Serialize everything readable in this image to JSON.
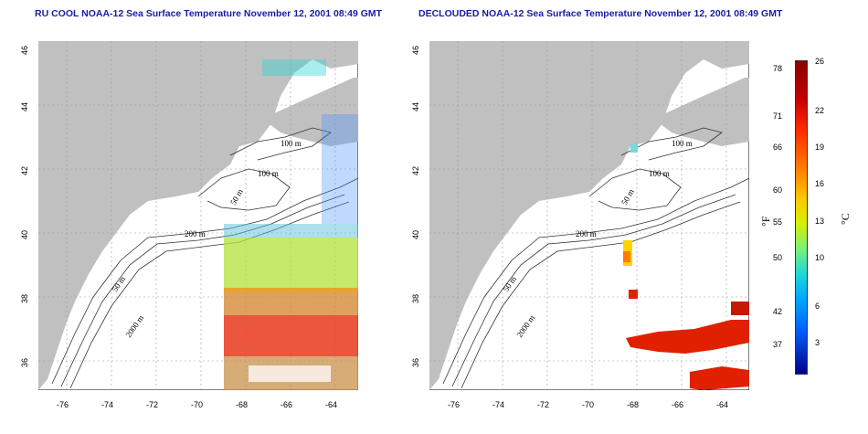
{
  "titles": {
    "left": "RU COOL NOAA-12 Sea Surface Temperature November 12, 2001 08:49 GMT",
    "right": "DECLOUDED NOAA-12 Sea Surface Temperature November 12, 2001 08:49 GMT"
  },
  "map": {
    "lon_ticks": [
      "-76",
      "-74",
      "-72",
      "-70",
      "-68",
      "-66",
      "-64"
    ],
    "lat_ticks": [
      "46",
      "44",
      "42",
      "40",
      "38",
      "36"
    ],
    "contour_labels": [
      "100 m",
      "100 m",
      "50 m",
      "200 m",
      "50 m",
      "2000 m"
    ]
  },
  "colorbar": {
    "f_unit": "°F",
    "c_unit": "°C",
    "f_ticks": [
      "78",
      "71",
      "66",
      "60",
      "55",
      "50",
      "42",
      "37"
    ],
    "c_ticks": [
      "26",
      "22",
      "19",
      "16",
      "13",
      "10",
      "6",
      "3"
    ]
  }
}
